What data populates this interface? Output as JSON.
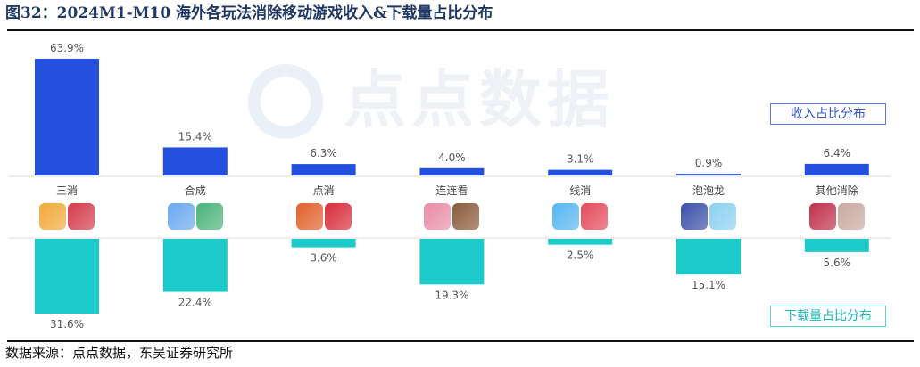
{
  "title": "图32：2024M1-M10 海外各玩法消除移动游戏收入&下载量占比分布",
  "source": "数据来源：点点数据，东吴证券研究所",
  "watermark": "点点数据",
  "colors": {
    "revenue": "#2450e0",
    "downloads": "#1ccbc9"
  },
  "chart_data": {
    "type": "bar",
    "categories": [
      "三消",
      "合成",
      "点消",
      "连连看",
      "线消",
      "泡泡龙",
      "其他消除"
    ],
    "series": [
      {
        "name": "收入占比分布",
        "values": [
          63.9,
          15.4,
          6.3,
          4.0,
          3.1,
          0.9,
          6.4
        ],
        "labels": [
          "63.9%",
          "15.4%",
          "6.3%",
          "4.0%",
          "3.1%",
          "0.9%",
          "6.4%"
        ]
      },
      {
        "name": "下载量占比分布",
        "values": [
          31.6,
          22.4,
          3.6,
          19.3,
          2.5,
          15.1,
          5.6
        ],
        "labels": [
          "31.6%",
          "22.4%",
          "3.6%",
          "19.3%",
          "2.5%",
          "15.1%",
          "5.6%"
        ]
      }
    ],
    "legend": "right"
  }
}
